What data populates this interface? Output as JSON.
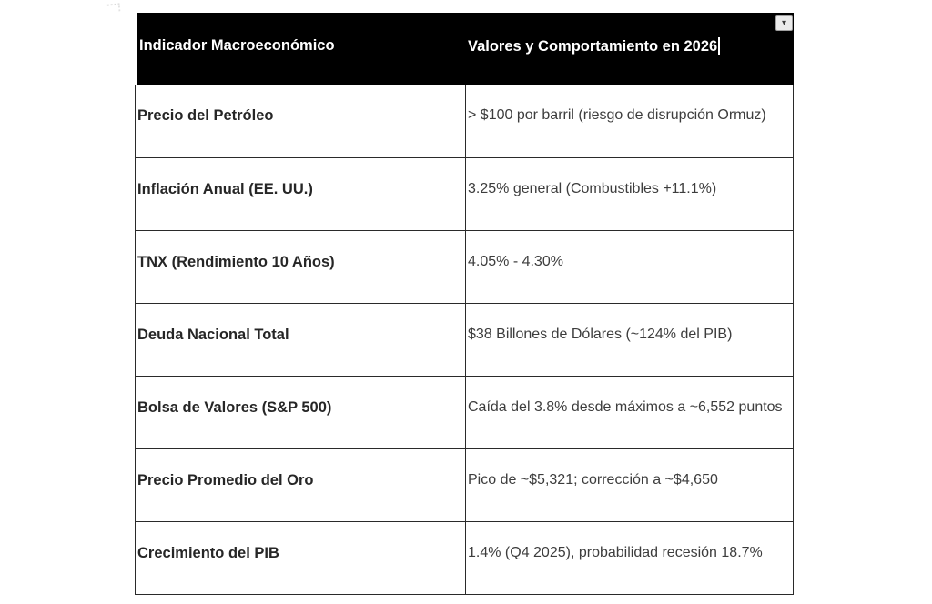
{
  "table": {
    "header": {
      "indicator_label": "Indicador Macroeconómico",
      "values_label": "Valores y Comportamiento en 2026"
    },
    "rows": [
      {
        "indicator": "Precio del Petróleo",
        "value": "> $100 por barril (riesgo de disrupción Ormuz)"
      },
      {
        "indicator": "Inflación Anual (EE. UU.)",
        "value": "3.25% general (Combustibles +11.1%)"
      },
      {
        "indicator": "TNX (Rendimiento 10 Años)",
        "value": "4.05% - 4.30%"
      },
      {
        "indicator": "Deuda Nacional Total",
        "value": "$38 Billones de Dólares (~124% del PIB)"
      },
      {
        "indicator": "Bolsa de Valores (S&P 500)",
        "value": "Caída del 3.8% desde máximos a ~6,552 puntos"
      },
      {
        "indicator": "Precio Promedio del Oro",
        "value": "Pico de ~$5,321; corrección a ~$4,650"
      },
      {
        "indicator": "Crecimiento del PIB",
        "value": "1.4% (Q4 2025), probabilidad recesión 18.7%"
      }
    ],
    "options_icon": "▾"
  },
  "colors": {
    "page_bg": "#ffffff",
    "header_bg": "#000000",
    "header_text": "#ffffff",
    "indicator_text": "#262626",
    "value_text": "#3d3d3d",
    "border": "#2a2a2a",
    "dropdown_bg": "#ebebeb",
    "dropdown_border": "#9e9e9e",
    "dropdown_arrow": "#3a3a3a"
  }
}
